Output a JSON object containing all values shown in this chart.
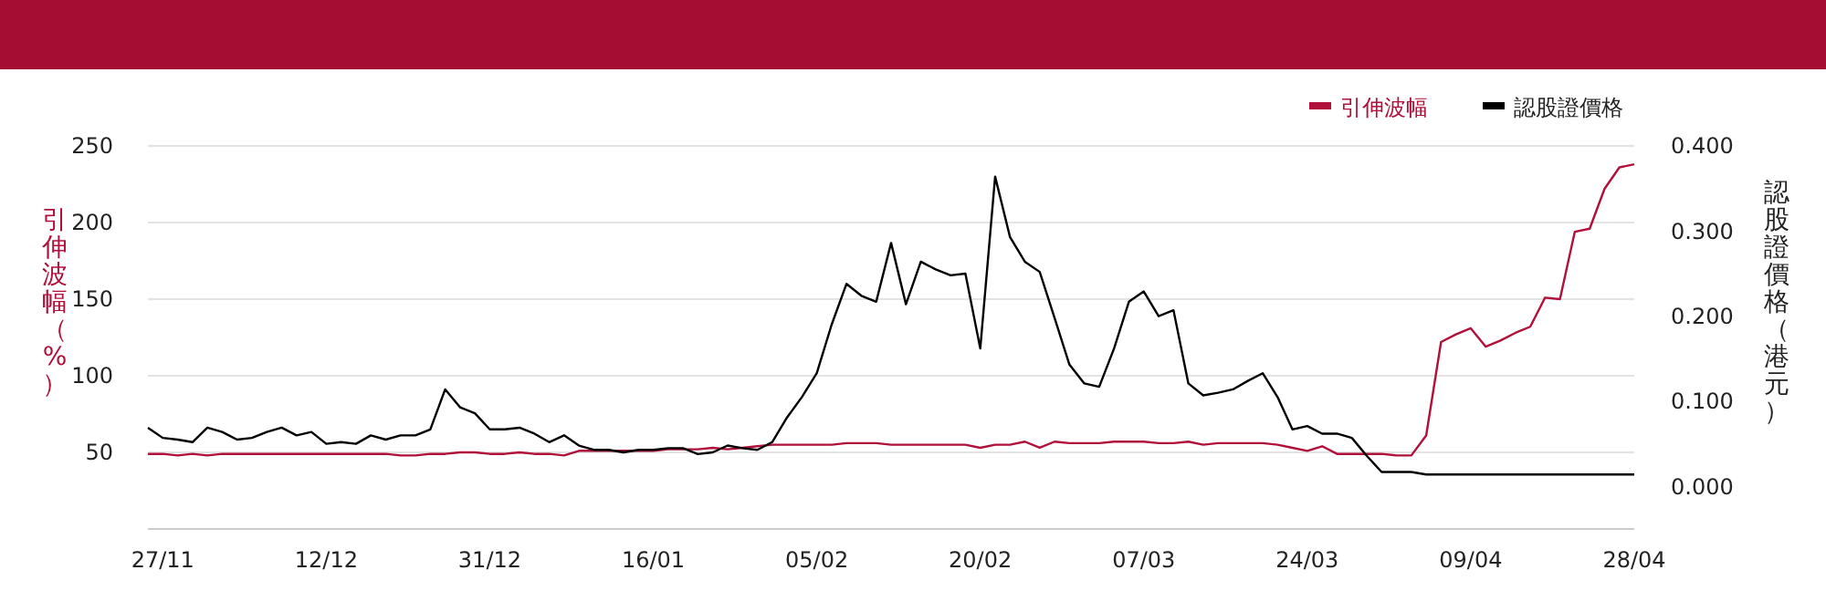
{
  "chart_data": {
    "type": "line",
    "categories": [
      null,
      "27/11",
      null,
      null,
      null,
      null,
      null,
      null,
      null,
      null,
      null,
      null,
      "12/12",
      null,
      null,
      null,
      null,
      null,
      null,
      null,
      null,
      null,
      null,
      "31/12",
      null,
      null,
      null,
      null,
      null,
      null,
      null,
      null,
      null,
      null,
      "16/01",
      null,
      null,
      null,
      null,
      null,
      null,
      null,
      null,
      null,
      null,
      "05/02",
      null,
      null,
      null,
      null,
      null,
      null,
      null,
      null,
      null,
      null,
      "20/02",
      null,
      null,
      null,
      null,
      null,
      null,
      null,
      null,
      null,
      null,
      "07/03",
      null,
      null,
      null,
      null,
      null,
      null,
      null,
      null,
      null,
      null,
      "24/03",
      null,
      null,
      null,
      null,
      null,
      null,
      null,
      null,
      null,
      null,
      "09/04",
      null,
      null,
      null,
      null,
      null,
      null,
      null,
      null,
      null,
      null,
      "28/04"
    ],
    "series": [
      {
        "name": "引伸波幅",
        "color": "#b0103a",
        "axis": "y",
        "values": [
          49,
          49,
          48,
          49,
          48,
          49,
          49,
          49,
          49,
          49,
          49,
          49,
          49,
          49,
          49,
          49,
          49,
          48,
          48,
          49,
          49,
          50,
          50,
          49,
          49,
          50,
          49,
          49,
          48,
          51,
          51,
          51,
          51,
          51,
          51,
          52,
          52,
          52,
          53,
          52,
          53,
          54,
          55,
          55,
          55,
          55,
          55,
          56,
          56,
          56,
          55,
          55,
          55,
          55,
          55,
          55,
          53,
          55,
          55,
          57,
          53,
          57,
          56,
          56,
          56,
          57,
          57,
          57,
          56,
          56,
          57,
          55,
          56,
          56,
          56,
          56,
          55,
          53,
          51,
          54,
          49,
          49,
          49,
          49,
          48,
          48,
          61,
          122,
          127,
          131,
          119,
          123,
          128,
          132,
          151,
          150,
          194,
          196,
          222,
          236,
          238
        ]
      },
      {
        "name": "認股證價格",
        "color": "#000000",
        "axis": "y2",
        "values": [
          0.069,
          0.057,
          0.055,
          0.052,
          0.069,
          0.064,
          0.055,
          0.057,
          0.064,
          0.069,
          0.06,
          0.064,
          0.05,
          0.052,
          0.05,
          0.06,
          0.055,
          0.06,
          0.06,
          0.067,
          0.114,
          0.093,
          0.086,
          0.067,
          0.067,
          0.069,
          0.062,
          0.052,
          0.06,
          0.048,
          0.043,
          0.043,
          0.04,
          0.043,
          0.043,
          0.045,
          0.045,
          0.038,
          0.04,
          0.048,
          0.045,
          0.043,
          0.052,
          0.081,
          0.105,
          0.133,
          0.19,
          0.238,
          0.224,
          0.217,
          0.286,
          0.214,
          0.264,
          0.255,
          0.248,
          0.25,
          0.162,
          0.364,
          0.293,
          0.264,
          0.252,
          0.198,
          0.143,
          0.121,
          0.117,
          0.162,
          0.217,
          0.229,
          0.2,
          0.207,
          0.121,
          0.107,
          0.11,
          0.114,
          0.124,
          0.133,
          0.105,
          0.067,
          0.071,
          0.062,
          0.062,
          0.057,
          0.036,
          0.017,
          0.017,
          0.017,
          0.014,
          0.014,
          0.014,
          0.014,
          0.014,
          0.014,
          0.014,
          0.014,
          0.014,
          0.014,
          0.014,
          0.014,
          0.014,
          0.014,
          0.014
        ]
      }
    ],
    "ylabel": "引伸波幅（%）",
    "y2label": "認股證價格（港元）",
    "ylim": [
      0,
      250
    ],
    "yticks": [
      50,
      100,
      150,
      200,
      250
    ],
    "y2lim": [
      -0.05,
      0.4
    ],
    "y2ticks": [
      {
        "value": 0,
        "label": "0.000"
      },
      {
        "value": 0.1,
        "label": "0.100"
      },
      {
        "value": 0.2,
        "label": "0.200"
      },
      {
        "value": 0.3,
        "label": "0.300"
      },
      {
        "value": 0.4,
        "label": "0.400"
      }
    ],
    "grid": "y",
    "legend": "top right"
  }
}
